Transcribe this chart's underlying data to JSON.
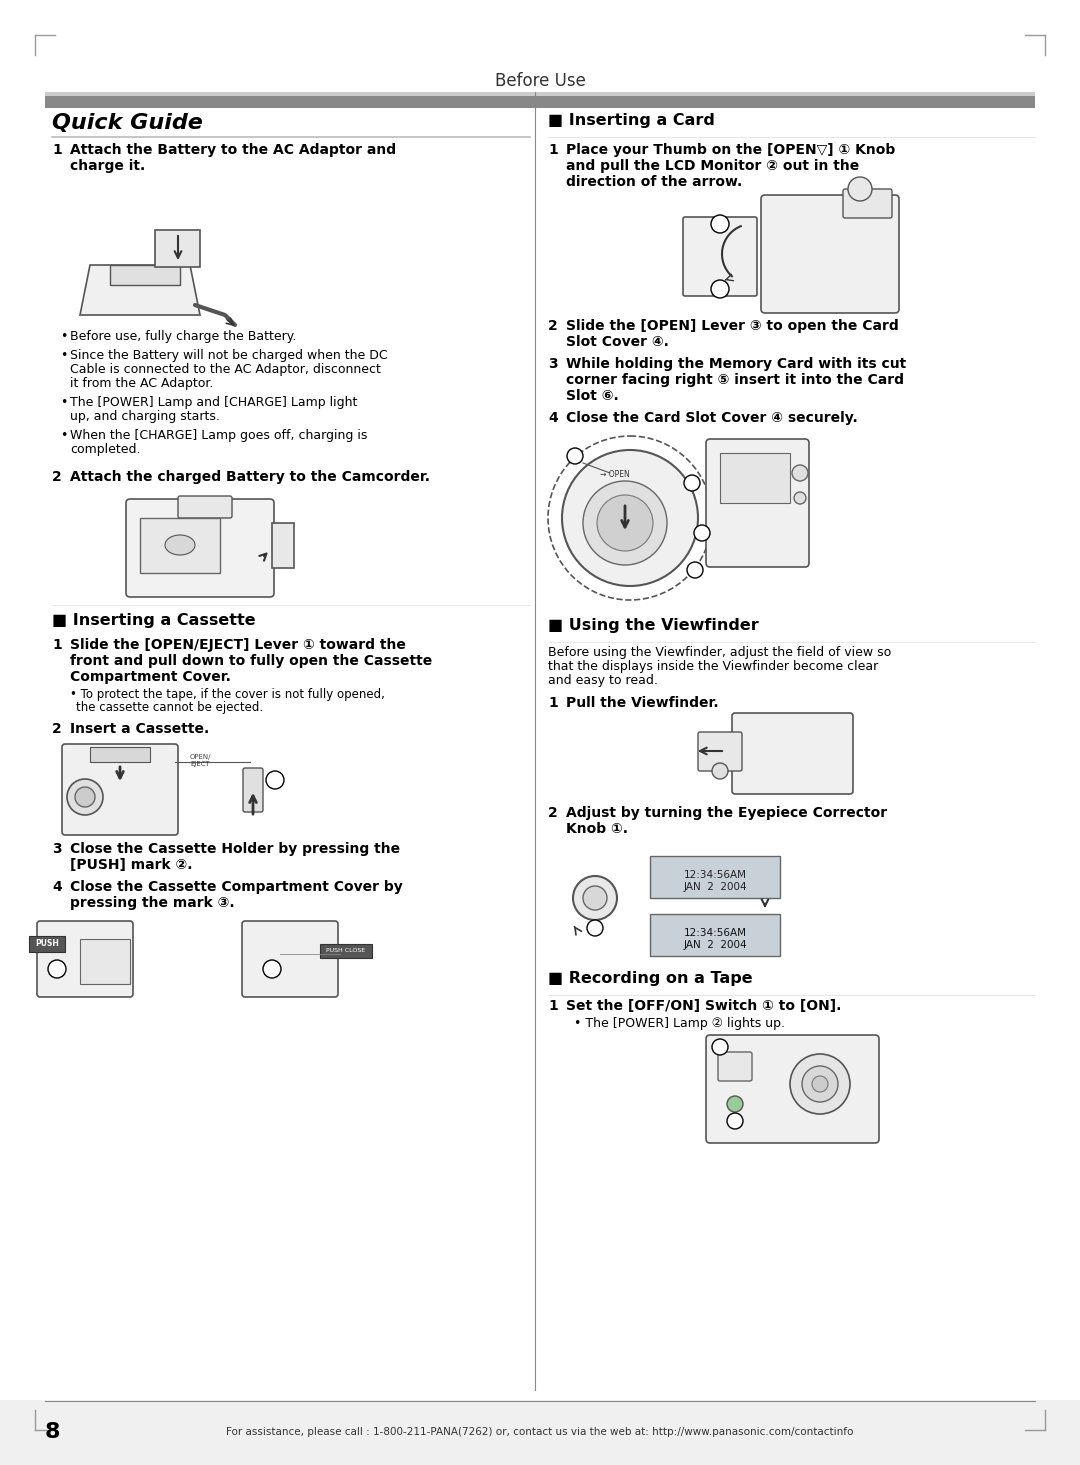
{
  "page_title": "Before Use",
  "bg_color": "#ffffff",
  "page_number": "8",
  "footer_text": "For assistance, please call : 1-800-211-PANA(7262) or, contact us via the web at: http://www.panasonic.com/contactinfo",
  "left_sections": {
    "title": "Quick Guide",
    "s1_text": "Attach the Battery to the AC Adaptor and\ncharge it.",
    "bullets": [
      "Before use, fully charge the Battery.",
      "Since the Battery will not be charged when the DC\nCable is connected to the AC Adaptor, disconnect\nit from the AC Adaptor.",
      "The [POWER] Lamp and [CHARGE] Lamp light\nup, and charging starts.",
      "When the [CHARGE] Lamp goes off, charging is\ncompleted."
    ],
    "s2_text": "Attach the charged Battery to the Camcorder.",
    "cass_title": "■ Inserting a Cassette",
    "cass_s1_text": "Slide the [OPEN/EJECT] Lever ① toward the\nfront and pull down to fully open the Cassette\nCompartment Cover.",
    "cass_s1_sub": "To protect the tape, if the cover is not fully opened,\nthe cassette cannot be ejected.",
    "cass_s2_text": "Insert a Cassette.",
    "cass_s3_text": "Close the Cassette Holder by pressing the\n[PUSH] mark ②.",
    "cass_s4_text": "Close the Cassette Compartment Cover by\npressing the mark ③."
  },
  "right_sections": {
    "card_title": "■ Inserting a Card",
    "card_s1_text": "Place your Thumb on the [OPEN▽] ① Knob\nand pull the LCD Monitor ② out in the\ndirection of the arrow.",
    "card_s2_text": "Slide the [OPEN] Lever ③ to open the Card\nSlot Cover ④.",
    "card_s3_text": "While holding the Memory Card with its cut\ncorner facing right ⑤ insert it into the Card\nSlot ⑥.",
    "card_s4_text": "Close the Card Slot Cover ④ securely.",
    "vf_title": "■ Using the Viewfinder",
    "vf_intro": "Before using the Viewfinder, adjust the field of view so\nthat the displays inside the Viewfinder become clear\nand easy to read.",
    "vf_s1_text": "Pull the Viewfinder.",
    "vf_s2_text": "Adjust by turning the Eyepiece Corrector\nKnob ①.",
    "tape_title": "■ Recording on a Tape",
    "tape_s1_text": "Set the [OFF/ON] Switch ① to [ON].",
    "tape_s1_sub": "The [POWER] Lamp ② lights up."
  }
}
